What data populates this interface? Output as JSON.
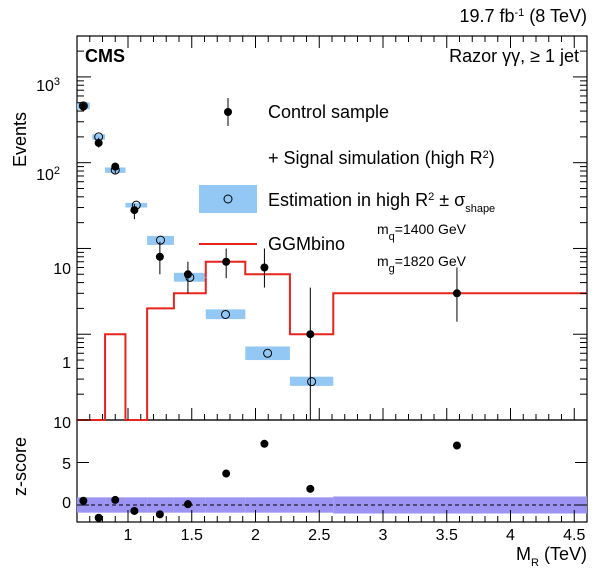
{
  "header": {
    "lumi": "19.7 fb",
    "lumi_exp": "-1",
    "energy": " (8 TeV)",
    "experiment": "CMS",
    "category": "Razor γγ, ≥ 1 jet"
  },
  "legend": {
    "control": "Control sample",
    "signal_sim": "+ Signal simulation (high R",
    "signal_sim_exp": "2",
    "signal_sim_end": ")",
    "estimation": "Estimation in high R",
    "estimation_exp": "2",
    "estimation_pm": " ± σ",
    "estimation_sub": "shape",
    "model": "GGMbino",
    "mq": "m",
    "mq_sub": "q",
    "mq_val": "=1400 GeV",
    "mg": "m",
    "mg_sub": "g",
    "mg_val": "=1820 GeV"
  },
  "axes": {
    "ylabel_top": "Events",
    "ylabel_bottom": "z-score",
    "xlabel": "M",
    "xlabel_sub": "R",
    "xlabel_unit": " (TeV)",
    "ytick_1000": "10",
    "ytick_1000_exp": "3",
    "ytick_100": "10",
    "ytick_100_exp": "2",
    "ytick_10": "10",
    "ytick_1": "1",
    "ytick_floor": "10",
    "xticks": [
      "1",
      "1.5",
      "2",
      "2.5",
      "3",
      "3.5",
      "4",
      "4.5"
    ],
    "zticks": [
      "5",
      "0"
    ]
  },
  "chart_data": {
    "type": "scatter",
    "x_range": [
      0.6,
      4.6
    ],
    "y_log": true,
    "y_range_upper": [
      0.1,
      3000
    ],
    "y_range_lower": [
      -2,
      10
    ],
    "colors": {
      "data": "#000000",
      "estimation_band": "#94c8f4",
      "signal": "#e8231c",
      "zscore_band": "#9b94f3"
    },
    "control_sample": {
      "x": [
        0.65,
        0.77,
        0.9,
        1.05,
        1.25,
        1.47,
        1.77,
        2.07,
        2.43,
        3.58
      ],
      "y": [
        450,
        170,
        90,
        28,
        8,
        5,
        7,
        6,
        1,
        3
      ],
      "y_low": [
        400,
        150,
        75,
        22,
        5,
        3,
        4.5,
        3.5,
        0.1,
        1.4
      ],
      "y_high": [
        510,
        195,
        100,
        33,
        12,
        7,
        10,
        10,
        3.5,
        6
      ]
    },
    "estimation": {
      "x_low": [
        0.6,
        0.72,
        0.82,
        0.98,
        1.15,
        1.36,
        1.61,
        1.92,
        2.27
      ],
      "x_high": [
        0.7,
        0.82,
        0.98,
        1.15,
        1.36,
        1.61,
        1.92,
        2.27,
        2.61
      ],
      "y": [
        460,
        200,
        82,
        32,
        12.5,
        4.6,
        1.7,
        0.6,
        0.28
      ],
      "y_low": [
        420,
        185,
        76,
        30,
        11,
        4.1,
        1.5,
        0.5,
        0.25
      ],
      "y_high": [
        505,
        215,
        88,
        34,
        14,
        5.2,
        1.95,
        0.72,
        0.32
      ]
    },
    "signal_ggmbino": {
      "edges": [
        0.6,
        0.82,
        0.98,
        1.15,
        1.36,
        1.61,
        1.92,
        2.27,
        2.61,
        4.6
      ],
      "values": [
        0.05,
        1.0,
        0.05,
        2.0,
        3.0,
        7.0,
        5.0,
        1.0,
        3.0
      ]
    },
    "zscore": {
      "x": [
        0.65,
        0.77,
        0.9,
        1.05,
        1.25,
        1.47,
        1.77,
        2.07,
        2.43,
        3.58
      ],
      "z": [
        0.5,
        -1.5,
        0.6,
        -0.7,
        -1.1,
        0.1,
        3.7,
        7.2,
        1.9,
        7.0
      ],
      "band_edges": [
        0.6,
        0.82,
        0.98,
        1.15,
        1.36,
        1.61,
        1.92,
        2.27,
        2.61,
        4.6
      ],
      "band_half_width": [
        0.9,
        0.9,
        0.9,
        0.9,
        0.9,
        0.9,
        0.9,
        0.9,
        1.0,
        1.0
      ]
    }
  }
}
